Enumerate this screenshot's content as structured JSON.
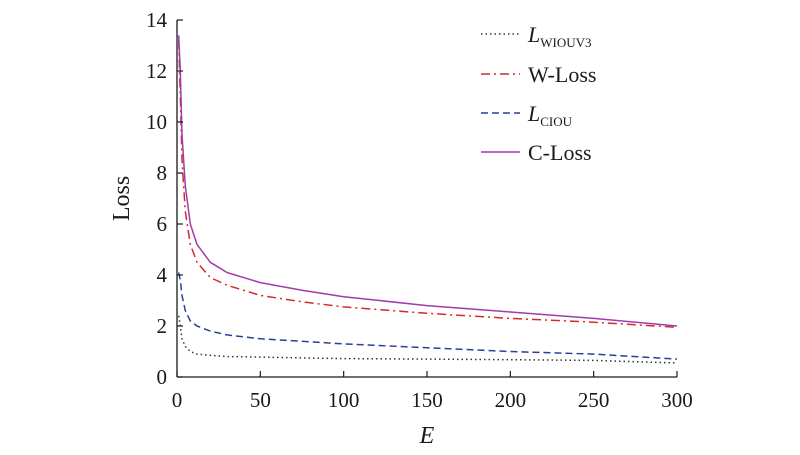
{
  "chart_data": {
    "type": "line",
    "title": "",
    "xlabel": "E",
    "ylabel": "Loss",
    "xlim": [
      0,
      300
    ],
    "ylim": [
      0,
      14
    ],
    "xticks": [
      0,
      50,
      100,
      150,
      200,
      250,
      300
    ],
    "yticks": [
      0,
      2,
      4,
      6,
      8,
      10,
      12,
      14
    ],
    "grid": false,
    "legend_position": "top-right",
    "series": [
      {
        "name_main": "L",
        "name_sub": "WIOUV3",
        "style": "dotted",
        "color": "#333333",
        "x": [
          1,
          2,
          3,
          5,
          8,
          12,
          20,
          30,
          50,
          75,
          100,
          150,
          200,
          250,
          300
        ],
        "y": [
          2.4,
          2.0,
          1.5,
          1.2,
          1.0,
          0.9,
          0.85,
          0.8,
          0.78,
          0.75,
          0.72,
          0.7,
          0.68,
          0.65,
          0.55
        ]
      },
      {
        "name": "W-Loss",
        "style": "dashdot",
        "color": "#d42a2a",
        "x": [
          1,
          2,
          3,
          5,
          8,
          12,
          20,
          30,
          50,
          75,
          100,
          150,
          200,
          250,
          300
        ],
        "y": [
          13.2,
          11.0,
          8.5,
          6.5,
          5.2,
          4.5,
          3.9,
          3.6,
          3.2,
          2.95,
          2.75,
          2.5,
          2.3,
          2.15,
          1.95
        ]
      },
      {
        "name_main": "L",
        "name_sub": "CIOU",
        "style": "dashed",
        "color": "#2a3f9a",
        "x": [
          1,
          2,
          3,
          5,
          8,
          12,
          20,
          30,
          50,
          75,
          100,
          150,
          200,
          250,
          300
        ],
        "y": [
          4.1,
          3.8,
          3.2,
          2.6,
          2.2,
          2.0,
          1.8,
          1.65,
          1.5,
          1.4,
          1.3,
          1.15,
          1.0,
          0.9,
          0.7
        ]
      },
      {
        "name": "C-Loss",
        "style": "solid",
        "color": "#a23ab0",
        "x": [
          1,
          2,
          3,
          5,
          8,
          12,
          20,
          30,
          50,
          75,
          100,
          150,
          200,
          250,
          300
        ],
        "y": [
          13.4,
          12.0,
          9.5,
          7.5,
          6.0,
          5.2,
          4.5,
          4.1,
          3.7,
          3.4,
          3.15,
          2.8,
          2.55,
          2.3,
          2.0
        ]
      }
    ]
  }
}
